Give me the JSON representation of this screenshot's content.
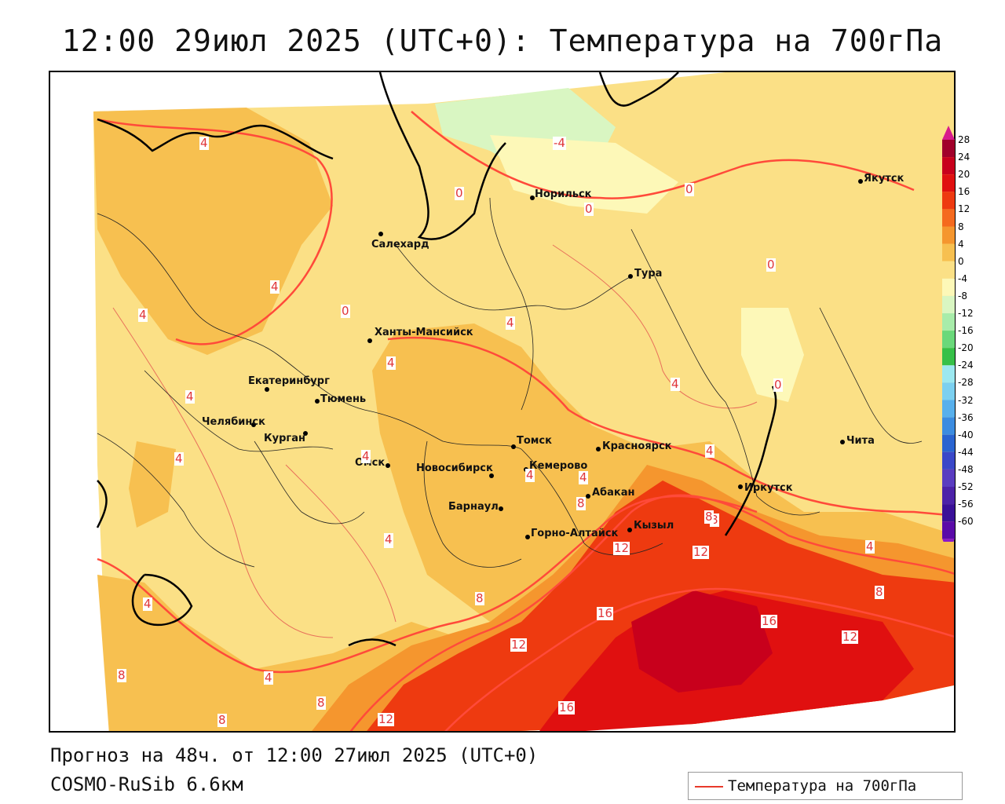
{
  "title": "12:00 29июл 2025 (UTC+0): Температура на 700гПа",
  "footer": {
    "forecast": "Прогноз на 48ч. от 12:00 27июл 2025 (UTC+0)",
    "model": "COSMO-RuSib 6.6км"
  },
  "legend": {
    "label": "Температура на 700гПа",
    "line_color": "#e83a2a"
  },
  "colorbar": {
    "ticks": [
      "28",
      "24",
      "20",
      "16",
      "12",
      "8",
      "4",
      "0",
      "-4",
      "-8",
      "-12",
      "-16",
      "-20",
      "-24",
      "-28",
      "-32",
      "-36",
      "-40",
      "-44",
      "-48",
      "-52",
      "-56",
      "-60"
    ],
    "colors": [
      "#a0002a",
      "#c8001c",
      "#e01010",
      "#ee3a10",
      "#f56a1e",
      "#f5962e",
      "#f7c050",
      "#fbe086",
      "#fdf8b8",
      "#d9f6c2",
      "#a8ecaa",
      "#6ad87a",
      "#36c048",
      "#9ce8f0",
      "#7cd0f0",
      "#58b0ec",
      "#3c8ce0",
      "#2a64d0",
      "#3a48c8",
      "#5a3cc0",
      "#4c22a8",
      "#3a1098",
      "#5a0aa8"
    ]
  },
  "cities": [
    {
      "name": "Норильск"
    },
    {
      "name": "Якутск"
    },
    {
      "name": "Салехард"
    },
    {
      "name": "Тура"
    },
    {
      "name": "Ханты-Мансийск"
    },
    {
      "name": "Екатеринбург"
    },
    {
      "name": "Тюмень"
    },
    {
      "name": "Челябинск"
    },
    {
      "name": "Курган"
    },
    {
      "name": "Томск"
    },
    {
      "name": "Красноярск"
    },
    {
      "name": "Омск"
    },
    {
      "name": "Новосибирск"
    },
    {
      "name": "Кемерово"
    },
    {
      "name": "Абакан"
    },
    {
      "name": "Иркутск"
    },
    {
      "name": "Чита"
    },
    {
      "name": "Барнаул"
    },
    {
      "name": "Кызыл"
    },
    {
      "name": "Горно-Алтайск"
    }
  ],
  "contour_labels": [
    "4",
    "-4",
    "0",
    "0",
    "0",
    "0",
    "4",
    "0",
    "4",
    "4",
    "0",
    "4",
    "4",
    "4",
    "4",
    "4",
    "4",
    "4",
    "4",
    "4",
    "8",
    "8",
    "4",
    "12",
    "12",
    "8",
    "8",
    "16",
    "16",
    "12",
    "12",
    "16",
    "8",
    "8",
    "12",
    "4",
    "8",
    "8",
    "4",
    "4"
  ]
}
